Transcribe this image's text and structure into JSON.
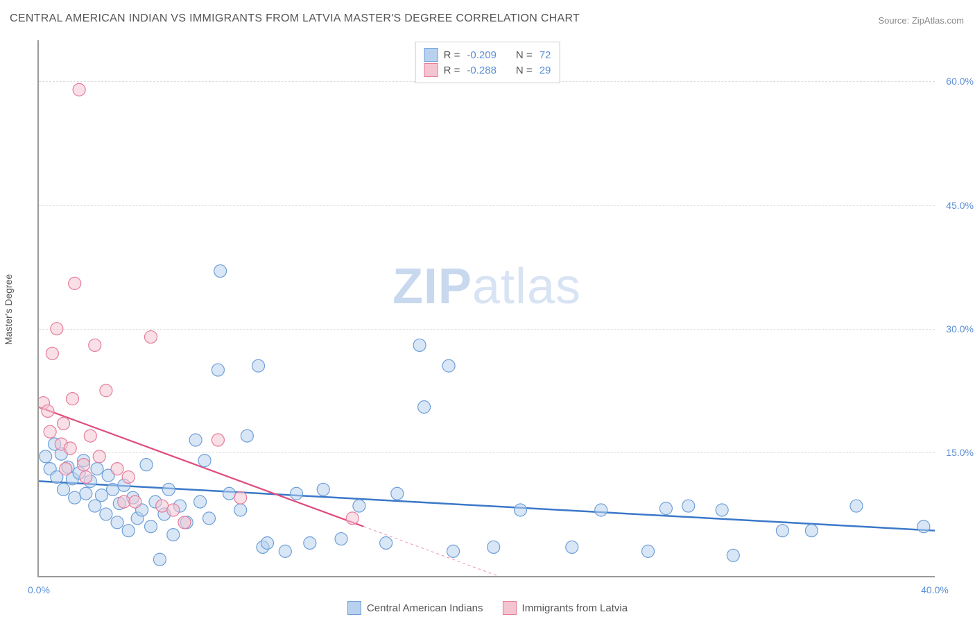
{
  "title": "CENTRAL AMERICAN INDIAN VS IMMIGRANTS FROM LATVIA MASTER'S DEGREE CORRELATION CHART",
  "source": "Source: ZipAtlas.com",
  "ylabel": "Master's Degree",
  "watermark": {
    "bold": "ZIP",
    "light": "atlas"
  },
  "chart": {
    "type": "scatter",
    "xlim": [
      0,
      40
    ],
    "ylim": [
      0,
      65
    ],
    "xtick_labels": [
      {
        "value": 0,
        "label": "0.0%"
      },
      {
        "value": 40,
        "label": "40.0%"
      }
    ],
    "ytick_gridlines": [
      15,
      30,
      45,
      60
    ],
    "ytick_labels": [
      {
        "value": 15,
        "label": "15.0%"
      },
      {
        "value": 30,
        "label": "30.0%"
      },
      {
        "value": 45,
        "label": "45.0%"
      },
      {
        "value": 60,
        "label": "60.0%"
      }
    ],
    "grid_color": "#dcdcdc",
    "background_color": "#ffffff",
    "axis_color": "#999999",
    "marker_radius": 9,
    "marker_stroke_width": 1.2,
    "series": [
      {
        "name": "Central American Indians",
        "fill": "#b8d1ee",
        "stroke": "#6e9fd8",
        "fill_opacity": 0.55,
        "R": "-0.209",
        "N": "72",
        "trend": {
          "x1": 0,
          "y1": 11.5,
          "x2": 40,
          "y2": 5.5,
          "color": "#3b78c9",
          "width": 2.5
        },
        "points": [
          [
            0.3,
            14.5
          ],
          [
            0.5,
            13.0
          ],
          [
            0.7,
            16.0
          ],
          [
            0.8,
            12.0
          ],
          [
            1.0,
            14.8
          ],
          [
            1.1,
            10.5
          ],
          [
            1.3,
            13.2
          ],
          [
            1.5,
            11.8
          ],
          [
            1.6,
            9.5
          ],
          [
            1.8,
            12.5
          ],
          [
            2.0,
            14.0
          ],
          [
            2.1,
            10.0
          ],
          [
            2.3,
            11.5
          ],
          [
            2.5,
            8.5
          ],
          [
            2.6,
            13.0
          ],
          [
            2.8,
            9.8
          ],
          [
            3.0,
            7.5
          ],
          [
            3.1,
            12.2
          ],
          [
            3.3,
            10.5
          ],
          [
            3.5,
            6.5
          ],
          [
            3.6,
            8.8
          ],
          [
            3.8,
            11.0
          ],
          [
            4.0,
            5.5
          ],
          [
            4.2,
            9.5
          ],
          [
            4.4,
            7.0
          ],
          [
            4.6,
            8.0
          ],
          [
            4.8,
            13.5
          ],
          [
            5.0,
            6.0
          ],
          [
            5.2,
            9.0
          ],
          [
            5.4,
            2.0
          ],
          [
            5.6,
            7.5
          ],
          [
            5.8,
            10.5
          ],
          [
            6.0,
            5.0
          ],
          [
            6.3,
            8.5
          ],
          [
            6.6,
            6.5
          ],
          [
            7.0,
            16.5
          ],
          [
            7.2,
            9.0
          ],
          [
            7.4,
            14.0
          ],
          [
            7.6,
            7.0
          ],
          [
            8.0,
            25.0
          ],
          [
            8.1,
            37.0
          ],
          [
            8.5,
            10.0
          ],
          [
            9.0,
            8.0
          ],
          [
            9.3,
            17.0
          ],
          [
            9.8,
            25.5
          ],
          [
            10.0,
            3.5
          ],
          [
            10.2,
            4.0
          ],
          [
            11.0,
            3.0
          ],
          [
            11.5,
            10.0
          ],
          [
            12.1,
            4.0
          ],
          [
            12.7,
            10.5
          ],
          [
            13.5,
            4.5
          ],
          [
            14.3,
            8.5
          ],
          [
            15.5,
            4.0
          ],
          [
            16.0,
            10.0
          ],
          [
            17.0,
            28.0
          ],
          [
            17.2,
            20.5
          ],
          [
            18.3,
            25.5
          ],
          [
            18.5,
            3.0
          ],
          [
            20.3,
            3.5
          ],
          [
            21.5,
            8.0
          ],
          [
            23.8,
            3.5
          ],
          [
            25.1,
            8.0
          ],
          [
            27.2,
            3.0
          ],
          [
            28.0,
            8.2
          ],
          [
            29.0,
            8.5
          ],
          [
            30.5,
            8.0
          ],
          [
            31.0,
            2.5
          ],
          [
            33.2,
            5.5
          ],
          [
            34.5,
            5.5
          ],
          [
            36.5,
            8.5
          ],
          [
            39.5,
            6.0
          ]
        ]
      },
      {
        "name": "Immigrants from Latvia",
        "fill": "#f4c4d1",
        "stroke": "#e57c9c",
        "fill_opacity": 0.55,
        "R": "-0.288",
        "N": "29",
        "trend": {
          "x1": 0,
          "y1": 20.5,
          "x2": 14.5,
          "y2": 6.0,
          "color": "#e04b7b",
          "width": 2.2,
          "dash_after_x": 14.5,
          "dash_x2": 20.5,
          "dash_y2": 0
        },
        "points": [
          [
            0.2,
            21.0
          ],
          [
            0.4,
            20.0
          ],
          [
            0.5,
            17.5
          ],
          [
            0.6,
            27.0
          ],
          [
            0.8,
            30.0
          ],
          [
            1.0,
            16.0
          ],
          [
            1.1,
            18.5
          ],
          [
            1.2,
            13.0
          ],
          [
            1.4,
            15.5
          ],
          [
            1.5,
            21.5
          ],
          [
            1.6,
            35.5
          ],
          [
            1.8,
            59.0
          ],
          [
            2.0,
            13.5
          ],
          [
            2.1,
            12.0
          ],
          [
            2.3,
            17.0
          ],
          [
            2.5,
            28.0
          ],
          [
            2.7,
            14.5
          ],
          [
            3.0,
            22.5
          ],
          [
            3.5,
            13.0
          ],
          [
            3.8,
            9.0
          ],
          [
            4.0,
            12.0
          ],
          [
            4.3,
            9.0
          ],
          [
            5.0,
            29.0
          ],
          [
            5.5,
            8.5
          ],
          [
            6.0,
            8.0
          ],
          [
            6.5,
            6.5
          ],
          [
            8.0,
            16.5
          ],
          [
            9.0,
            9.5
          ],
          [
            14.0,
            7.0
          ]
        ]
      }
    ],
    "stats_legend_label": {
      "R_prefix": "R =",
      "N_prefix": "N ="
    },
    "stat_value_color": "#5b8fd6",
    "tick_label_color": "#5b8fd6",
    "tick_label_fontsize": 14,
    "title_fontsize": 16,
    "title_color": "#555555"
  }
}
